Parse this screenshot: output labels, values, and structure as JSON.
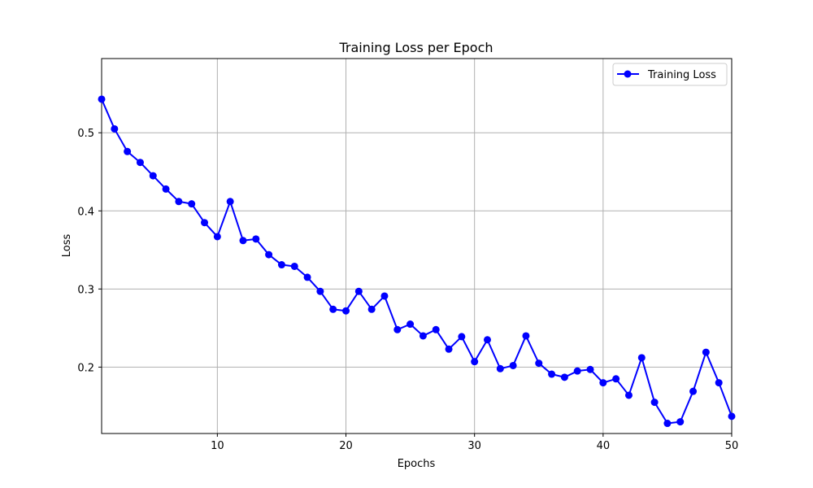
{
  "chart_data": {
    "type": "line",
    "title": "Training Loss per Epoch",
    "xlabel": "Epochs",
    "ylabel": "Loss",
    "xlim": [
      1,
      50
    ],
    "ylim": [
      0.115,
      0.595
    ],
    "xticks": [
      10,
      20,
      30,
      40,
      50
    ],
    "yticks": [
      0.2,
      0.3,
      0.4,
      0.5
    ],
    "grid": true,
    "legend_position": "top-right",
    "series": [
      {
        "name": "Training Loss",
        "color": "#0000ff",
        "marker": "circle",
        "x": [
          1,
          2,
          3,
          4,
          5,
          6,
          7,
          8,
          9,
          10,
          11,
          12,
          13,
          14,
          15,
          16,
          17,
          18,
          19,
          20,
          21,
          22,
          23,
          24,
          25,
          26,
          27,
          28,
          29,
          30,
          31,
          32,
          33,
          34,
          35,
          36,
          37,
          38,
          39,
          40,
          41,
          42,
          43,
          44,
          45,
          46,
          47,
          48,
          49,
          50
        ],
        "y": [
          0.543,
          0.505,
          0.476,
          0.462,
          0.445,
          0.428,
          0.412,
          0.409,
          0.385,
          0.367,
          0.412,
          0.362,
          0.364,
          0.344,
          0.331,
          0.329,
          0.315,
          0.297,
          0.274,
          0.272,
          0.297,
          0.274,
          0.291,
          0.248,
          0.255,
          0.24,
          0.248,
          0.223,
          0.239,
          0.207,
          0.235,
          0.198,
          0.202,
          0.24,
          0.205,
          0.191,
          0.187,
          0.195,
          0.197,
          0.18,
          0.185,
          0.164,
          0.212,
          0.155,
          0.128,
          0.13,
          0.169,
          0.219,
          0.18,
          0.137
        ]
      }
    ]
  }
}
